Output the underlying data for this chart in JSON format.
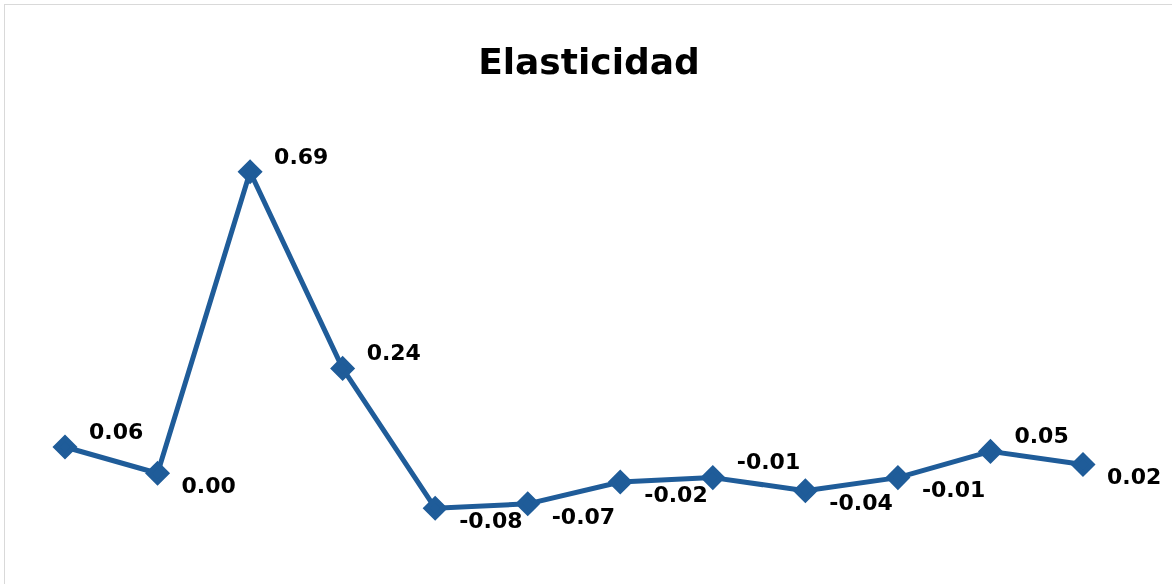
{
  "chart_data": {
    "type": "line",
    "title": "Elasticidad",
    "categories": [
      null,
      null,
      null,
      null,
      null,
      null,
      null,
      null,
      null,
      null,
      null,
      null
    ],
    "series": [
      {
        "color": "#1f5c99",
        "values": [
          0.06,
          0.0,
          0.69,
          0.24,
          -0.08,
          -0.07,
          -0.02,
          -0.01,
          -0.04,
          -0.01,
          0.05,
          0.02
        ],
        "value_labels": [
          "0.06",
          "0.00",
          "0.69",
          "0.24",
          "-0.08",
          "-0.07",
          "-0.02",
          "-0.01",
          "-0.04",
          "-0.01",
          "0.05",
          "0.02"
        ]
      }
    ],
    "tick_labels": false,
    "grid": false,
    "marker": "diamond",
    "legend": false
  }
}
